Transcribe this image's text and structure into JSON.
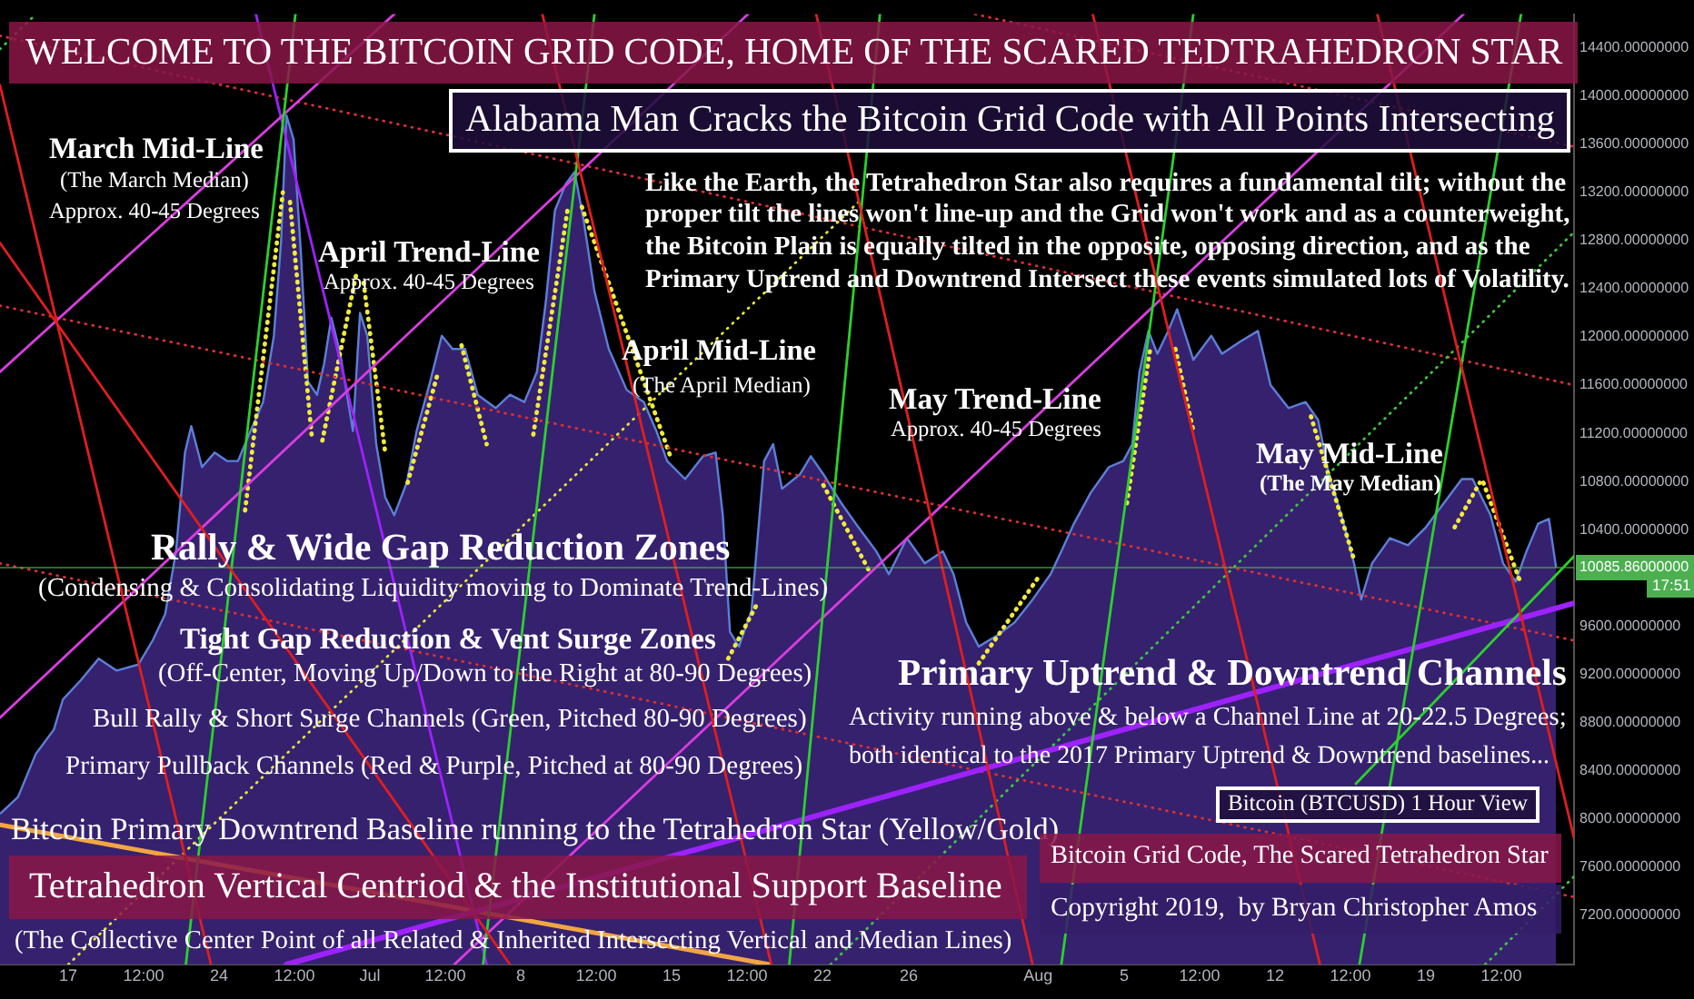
{
  "chart_data": {
    "type": "area",
    "title": "WELCOME TO THE BITCOIN GRID CODE, HOME OF THE SCARED TEDTRAHEDRON STAR",
    "subtitle": "Alabama Man Cracks the Bitcoin Grid Code with All Points Intersecting",
    "series": [
      {
        "type": "area",
        "color": "#3b2478",
        "x": [
          "2019-06-13T20:00",
          "2019-06-14T16:00",
          "2019-06-15T12:00",
          "2019-06-16T08:00",
          "2019-06-16T18:00",
          "2019-06-17T14:00",
          "2019-06-18T10:00",
          "2019-06-19T06:00",
          "2019-06-20T06:00",
          "2019-06-20T22:00",
          "2019-06-21T12:00",
          "2019-06-22T00:00",
          "2019-06-22T10:00",
          "2019-06-22T17:00",
          "2019-06-23T05:00",
          "2019-06-23T19:00",
          "2019-06-24T09:00",
          "2019-06-24T21:00",
          "2019-06-25T11:00",
          "2019-06-26T01:00",
          "2019-06-26T13:00",
          "2019-06-26T21:00",
          "2019-06-27T03:00",
          "2019-06-27T11:00",
          "2019-06-27T19:00",
          "2019-06-28T03:00",
          "2019-06-28T13:00",
          "2019-06-28T21:00",
          "2019-06-29T05:00",
          "2019-06-29T15:00",
          "2019-06-30T05:00",
          "2019-06-30T13:00",
          "2019-06-30T21:00",
          "2019-07-01T07:00",
          "2019-07-01T17:00",
          "2019-07-02T03:00",
          "2019-07-02T17:00",
          "2019-07-03T04:00",
          "2019-07-03T18:00",
          "2019-07-04T08:00",
          "2019-07-04T20:00",
          "2019-07-05T10:00",
          "2019-07-06T00:00",
          "2019-07-06T20:00",
          "2019-07-07T12:00",
          "2019-07-08T04:00",
          "2019-07-08T18:00",
          "2019-07-09T04:00",
          "2019-07-09T14:00",
          "2019-07-10T02:00",
          "2019-07-10T12:00",
          "2019-07-10T22:00",
          "2019-07-11T10:00",
          "2019-07-12T02:00",
          "2019-07-12T22:00",
          "2019-07-13T17:00",
          "2019-07-14T07:00",
          "2019-07-14T19:00",
          "2019-07-15T15:00",
          "2019-07-16T11:00",
          "2019-07-17T01:00",
          "2019-07-17T09:00",
          "2019-07-17T17:00",
          "2019-07-18T03:00",
          "2019-07-18T17:00",
          "2019-07-19T07:00",
          "2019-07-19T17:00",
          "2019-07-20T03:00",
          "2019-07-20T23:00",
          "2019-07-21T11:00",
          "2019-07-22T01:00",
          "2019-07-22T21:00",
          "2019-07-23T16:00",
          "2019-07-24T12:00",
          "2019-07-25T02:00",
          "2019-07-25T22:00",
          "2019-07-26T18:00",
          "2019-07-27T14:00",
          "2019-07-28T02:00",
          "2019-07-28T16:00",
          "2019-07-29T06:00",
          "2019-07-30T02:00",
          "2019-07-30T22:00",
          "2019-07-31T18:00",
          "2019-08-01T14:00",
          "2019-08-02T02:00",
          "2019-08-02T16:00",
          "2019-08-03T11:00",
          "2019-08-04T07:00",
          "2019-08-04T23:00",
          "2019-08-05T09:00",
          "2019-08-05T17:00",
          "2019-08-06T03:00",
          "2019-08-06T13:00",
          "2019-08-07T01:00",
          "2019-08-07T11:00",
          "2019-08-08T05:00",
          "2019-08-09T01:00",
          "2019-08-09T13:00",
          "2019-08-10T09:00",
          "2019-08-11T05:00",
          "2019-08-11T19:00",
          "2019-08-12T15:00",
          "2019-08-13T10:00",
          "2019-08-14T00:00",
          "2019-08-14T12:00",
          "2019-08-15T02:00",
          "2019-08-15T16:00",
          "2019-08-16T00:00",
          "2019-08-16T12:00",
          "2019-08-17T08:00",
          "2019-08-18T04:00",
          "2019-08-19T00:00",
          "2019-08-19T20:00",
          "2019-08-20T16:00",
          "2019-08-21T04:00",
          "2019-08-22T00:00",
          "2019-08-22T14:00",
          "2019-08-23T04:00",
          "2019-08-23T16:00",
          "2019-08-24T05:00",
          "2019-08-24T17:00",
          "2019-08-25T01:00"
        ],
        "values": [
          8040,
          8180,
          8540,
          8740,
          8990,
          9150,
          9330,
          9230,
          9280,
          9480,
          9700,
          10220,
          11040,
          11260,
          10920,
          11040,
          10970,
          10970,
          11220,
          11460,
          12010,
          12790,
          13840,
          13640,
          12710,
          11630,
          11520,
          11780,
          12160,
          11860,
          11220,
          12200,
          12010,
          11110,
          10670,
          10520,
          10790,
          11220,
          11600,
          12010,
          11900,
          11900,
          11520,
          11410,
          11520,
          11460,
          11710,
          12300,
          13050,
          13270,
          13370,
          12970,
          12380,
          11900,
          11560,
          11460,
          11220,
          10970,
          10820,
          11010,
          11040,
          10520,
          9550,
          9430,
          9730,
          10970,
          11110,
          10740,
          10860,
          11010,
          10860,
          10620,
          10420,
          10220,
          10030,
          10330,
          10120,
          10220,
          10030,
          9630,
          9430,
          9520,
          9630,
          9820,
          10030,
          10220,
          10450,
          10710,
          10920,
          10970,
          11110,
          11710,
          12050,
          11860,
          12050,
          12230,
          11810,
          12010,
          11860,
          11960,
          12050,
          11600,
          11410,
          11460,
          11310,
          10860,
          10520,
          10120,
          9820,
          10120,
          10330,
          10270,
          10420,
          10620,
          10820,
          10820,
          10520,
          10120,
          9970,
          10220,
          10450,
          10490,
          10085.86
        ]
      },
      {
        "type": "line",
        "color": "#e01e1e",
        "x": [
          "2019-06-13T20:00",
          "2019-06-23T15:00"
        ],
        "values": [
          14090,
          6790
        ]
      },
      {
        "type": "line",
        "color": "#e01e1e",
        "x": [
          "2019-06-13T20:00",
          "2019-07-07T12:00"
        ],
        "values": [
          12780,
          6790
        ]
      },
      {
        "type": "line",
        "color": "#e01e1e",
        "x": [
          "2019-07-09T00:00",
          "2019-07-19T15:00"
        ],
        "values": [
          14680,
          6790
        ]
      },
      {
        "type": "line",
        "color": "#e01e1e",
        "x": [
          "2019-07-21T17:00",
          "2019-07-31T18:00"
        ],
        "values": [
          14680,
          6790
        ]
      },
      {
        "type": "line",
        "color": "#e01e1e",
        "x": [
          "2019-08-03T13:00",
          "2019-08-14T02:00"
        ],
        "values": [
          14680,
          6790
        ]
      },
      {
        "type": "line",
        "color": "#e01e1e",
        "x": [
          "2019-08-16T18:00",
          "2019-08-25T21:00"
        ],
        "values": [
          14680,
          7840
        ]
      },
      {
        "type": "line",
        "color": "#2bd12b",
        "x": [
          "2019-06-22T11:00",
          "2019-06-27T13:00"
        ],
        "values": [
          6790,
          14680
        ]
      },
      {
        "type": "line",
        "color": "#2bd12b",
        "x": [
          "2019-07-06T06:00",
          "2019-07-11T10:00"
        ],
        "values": [
          6790,
          14680
        ]
      },
      {
        "type": "line",
        "color": "#2bd12b",
        "x": [
          "2019-07-20T11:00",
          "2019-07-24T16:00"
        ],
        "values": [
          6790,
          14680
        ]
      },
      {
        "type": "line",
        "color": "#2bd12b",
        "x": [
          "2019-08-02T02:00",
          "2019-08-08T05:00"
        ],
        "values": [
          6790,
          14680
        ]
      },
      {
        "type": "line",
        "color": "#2bd12b",
        "x": [
          "2019-08-15T22:00",
          "2019-08-23T10:00"
        ],
        "values": [
          6790,
          14680
        ]
      },
      {
        "type": "line",
        "color": "#2bd12b",
        "x": [
          "2019-08-15T18:00",
          "2019-08-25T21:00"
        ],
        "values": [
          8290,
          10180
        ]
      },
      {
        "type": "line",
        "color": "#d93de0",
        "x": [
          "2019-06-13T20:00",
          "2019-07-02T03:00"
        ],
        "values": [
          11710,
          14680
        ]
      },
      {
        "type": "line",
        "color": "#d93de0",
        "x": [
          "2019-06-13T20:00",
          "2019-07-18T13:00"
        ],
        "values": [
          8840,
          14680
        ]
      },
      {
        "type": "line",
        "color": "#d93de0",
        "x": [
          "2019-07-04T22:00",
          "2019-08-20T18:00"
        ],
        "values": [
          6790,
          14680
        ]
      },
      {
        "type": "line",
        "color": "#9d22ff",
        "x": [
          "2019-06-25T17:00",
          "2019-07-06T10:00"
        ],
        "values": [
          14680,
          6790
        ]
      },
      {
        "type": "line",
        "color": "#9d22ff",
        "x": [
          "2019-06-27T03:00",
          "2019-08-25T21:00"
        ],
        "values": [
          6790,
          9790
        ]
      },
      {
        "type": "line",
        "color": "#f2a541",
        "x": [
          "2019-06-13T20:00",
          "2019-07-19T13:00"
        ],
        "values": [
          7950,
          6790
        ]
      },
      {
        "type": "line",
        "color": "#e8e83a",
        "line_style": "dotted",
        "x": [
          "2019-06-17T00:00",
          "2019-07-23T16:00"
        ],
        "values": [
          6790,
          13120
        ]
      },
      {
        "type": "line",
        "color": "#3cc83c",
        "line_style": "dotted",
        "x": [
          "2019-07-22T09:00",
          "2019-08-25T21:00"
        ],
        "values": [
          6790,
          12870
        ]
      },
      {
        "type": "line",
        "color": "#3cc83c",
        "line_style": "dotted",
        "x": [
          "2019-06-13T20:00",
          "2019-06-15T12:00"
        ],
        "values": [
          14390,
          14680
        ]
      },
      {
        "type": "line",
        "color": "#3cc83c",
        "line_style": "dotted",
        "x": [
          "2019-08-21T18:00",
          "2019-08-25T21:00"
        ],
        "values": [
          6790,
          7520
        ]
      },
      {
        "type": "line",
        "color": "#d83030",
        "line_style": "dotted",
        "x": [
          "2019-06-13T20:00",
          "2019-08-25T21:00"
        ],
        "values": [
          12260,
          9480
        ]
      },
      {
        "type": "line",
        "color": "#d83030",
        "line_style": "dotted",
        "x": [
          "2019-06-13T20:00",
          "2019-08-25T21:00"
        ],
        "values": [
          14500,
          11600
        ]
      },
      {
        "type": "line",
        "color": "#d83030",
        "line_style": "dotted",
        "x": [
          "2019-06-13T20:00",
          "2019-08-25T21:00"
        ],
        "values": [
          10120,
          7350
        ]
      },
      {
        "type": "line",
        "color": "#d83030",
        "line_style": "dotted",
        "x": [
          "2019-07-29T02:00",
          "2019-08-25T21:00"
        ],
        "values": [
          14680,
          13580
        ]
      },
      {
        "type": "line",
        "color": "#f0ea3c",
        "line_style": "dotted",
        "x": [
          "2019-06-25T05:00",
          "2019-06-26T23:00"
        ],
        "values": [
          10560,
          13200
        ]
      },
      {
        "type": "line",
        "color": "#f0ea3c",
        "line_style": "dotted",
        "x": [
          "2019-06-27T07:00",
          "2019-06-28T07:00"
        ],
        "values": [
          13120,
          11190
        ]
      },
      {
        "type": "line",
        "color": "#f0ea3c",
        "line_style": "dotted",
        "x": [
          "2019-06-28T19:00",
          "2019-06-30T09:00"
        ],
        "values": [
          11140,
          12530
        ]
      },
      {
        "type": "line",
        "color": "#f0ea3c",
        "line_style": "dotted",
        "x": [
          "2019-06-30T17:00",
          "2019-07-01T17:00"
        ],
        "values": [
          12450,
          11040
        ]
      },
      {
        "type": "line",
        "color": "#f0ea3c",
        "line_style": "dotted",
        "x": [
          "2019-07-02T18:00",
          "2019-07-04T04:00"
        ],
        "values": [
          10790,
          11710
        ]
      },
      {
        "type": "line",
        "color": "#f0ea3c",
        "line_style": "dotted",
        "x": [
          "2019-07-05T06:00",
          "2019-07-06T10:00"
        ],
        "values": [
          11930,
          11110
        ]
      },
      {
        "type": "line",
        "color": "#f0ea3c",
        "line_style": "dotted",
        "x": [
          "2019-07-08T14:00",
          "2019-07-10T04:00"
        ],
        "values": [
          11190,
          13050
        ]
      },
      {
        "type": "line",
        "color": "#f0ea3c",
        "line_style": "dotted",
        "x": [
          "2019-07-10T20:00",
          "2019-07-14T23:00"
        ],
        "values": [
          13080,
          11000
        ]
      },
      {
        "type": "line",
        "color": "#f0ea3c",
        "line_style": "dotted",
        "x": [
          "2019-07-17T15:00",
          "2019-07-18T23:00"
        ],
        "values": [
          9330,
          9780
        ]
      },
      {
        "type": "line",
        "color": "#f0ea3c",
        "line_style": "dotted",
        "x": [
          "2019-07-22T01:00",
          "2019-07-24T06:00"
        ],
        "values": [
          10770,
          10030
        ]
      },
      {
        "type": "line",
        "color": "#f0ea3c",
        "line_style": "dotted",
        "x": [
          "2019-07-29T06:00",
          "2019-08-01T00:00"
        ],
        "values": [
          9290,
          10000
        ]
      },
      {
        "type": "line",
        "color": "#f0ea3c",
        "line_style": "dotted",
        "x": [
          "2019-08-05T03:00",
          "2019-08-06T05:00"
        ],
        "values": [
          10620,
          11900
        ]
      },
      {
        "type": "line",
        "color": "#f0ea3c",
        "line_style": "dotted",
        "x": [
          "2019-08-07T09:00",
          "2019-08-08T05:00"
        ],
        "values": [
          11900,
          11220
        ]
      },
      {
        "type": "line",
        "color": "#f0ea3c",
        "line_style": "dotted",
        "x": [
          "2019-08-13T16:00",
          "2019-08-15T16:00"
        ],
        "values": [
          11340,
          10150
        ]
      },
      {
        "type": "line",
        "color": "#f0ea3c",
        "line_style": "dotted",
        "x": [
          "2019-08-20T08:00",
          "2019-08-21T12:00"
        ],
        "values": [
          10420,
          10790
        ]
      },
      {
        "type": "line",
        "color": "#f0ea3c",
        "line_style": "dotted",
        "x": [
          "2019-08-21T16:00",
          "2019-08-23T10:00"
        ],
        "values": [
          10790,
          9950
        ]
      }
    ],
    "xlim": [
      "2019-06-13T20:00",
      "2019-08-25T21:00"
    ],
    "xticks": [
      {
        "value": "2019-06-17",
        "label": "17"
      },
      {
        "value": "2019-06-20T12:00",
        "label": "12:00"
      },
      {
        "value": "2019-06-24",
        "label": "24"
      },
      {
        "value": "2019-06-27T12:00",
        "label": "12:00"
      },
      {
        "value": "2019-07-01",
        "label": "Jul"
      },
      {
        "value": "2019-07-04T12:00",
        "label": "12:00"
      },
      {
        "value": "2019-07-08",
        "label": "8"
      },
      {
        "value": "2019-07-11T12:00",
        "label": "12:00"
      },
      {
        "value": "2019-07-15",
        "label": "15"
      },
      {
        "value": "2019-07-18T12:00",
        "label": "12:00"
      },
      {
        "value": "2019-07-22",
        "label": "22"
      },
      {
        "value": "2019-07-26",
        "label": "26"
      },
      {
        "value": "2019-08-01",
        "label": "Aug"
      },
      {
        "value": "2019-08-05",
        "label": "5"
      },
      {
        "value": "2019-08-08T12:00",
        "label": "12:00"
      },
      {
        "value": "2019-08-12",
        "label": "12"
      },
      {
        "value": "2019-08-15T12:00",
        "label": "12:00"
      },
      {
        "value": "2019-08-19",
        "label": "19"
      },
      {
        "value": "2019-08-22T12:00",
        "label": "12:00"
      }
    ],
    "ylim": [
      6790,
      14680
    ],
    "yticks": [
      {
        "value": 7200,
        "label": "7200.00000000"
      },
      {
        "value": 7600,
        "label": "7600.00000000"
      },
      {
        "value": 8000,
        "label": "8000.00000000"
      },
      {
        "value": 8400,
        "label": "8400.00000000"
      },
      {
        "value": 8800,
        "label": "8800.00000000"
      },
      {
        "value": 9200,
        "label": "9200.00000000"
      },
      {
        "value": 9600,
        "label": "9600.00000000"
      },
      {
        "value": 10400,
        "label": "10400.00000000"
      },
      {
        "value": 10800,
        "label": "10800.00000000"
      },
      {
        "value": 11200,
        "label": "11200.00000000"
      },
      {
        "value": 11600,
        "label": "11600.00000000"
      },
      {
        "value": 12000,
        "label": "12000.00000000"
      },
      {
        "value": 12400,
        "label": "12400.00000000"
      },
      {
        "value": 12800,
        "label": "12800.00000000"
      },
      {
        "value": 13200,
        "label": "13200.00000000"
      },
      {
        "value": 13600,
        "label": "13600.00000000"
      },
      {
        "value": 14000,
        "label": "14000.00000000"
      },
      {
        "value": 14400,
        "label": "14400.00000000"
      }
    ],
    "ref_lines": [
      {
        "axis": "y",
        "value": 10085.86,
        "label": "10085.86000000",
        "color": "#4caf50"
      }
    ],
    "annotations": [
      "Like the Earth, the Tetrahedron Star also requires a fundamental tilt; without the",
      "proper tilt the lines won't line-up and the Grid won't work and as a counterweight,",
      "the Bitcoin Plain is equally tilted in the opposite, opposing direction, and as the",
      "Primary Uptrend and Downtrend Intersect these events simulated lots of Volatility.",
      "March Mid-Line",
      "(The March Median)",
      "Approx. 40-45 Degrees",
      "April Trend-Line",
      "Approx. 40-45 Degrees",
      "April Mid-Line",
      "(The April Median)",
      "May Trend-Line",
      "Approx. 40-45 Degrees",
      "May Mid-Line",
      "(The May Median)",
      "Rally & Wide Gap Reduction Zones",
      "(Condensing & Consolidating Liquidity moving to Dominate Trend-Lines)",
      "Tight Gap Reduction & Vent Surge Zones",
      "(Off-Center, Moving Up/Down to the Right at 80-90 Degrees)",
      "Bull Rally & Short Surge Channels (Green, Pitched 80-90 Degrees)",
      "Primary Pullback Channels (Red & Purple, Pitched at 80-90 Degrees)",
      "Bitcoin Primary Downtrend Baseline running to the Tetrahedron Star (Yellow/Gold)",
      "Tetrahedron Vertical Centriod & the Institutional Support Baseline",
      "(The Collective Center Point of all Related & Inherited Intersecting Vertical and Median Lines)",
      "Primary Uptrend & Downtrend Channels",
      "Activity running above & below a Channel Line at 20-22.5 Degrees;",
      "both identical to the 2017 Primary Uptrend & Downtrend baselines...",
      "Bitcoin (BTCUSD) 1 Hour View",
      "Bitcoin Grid Code, The Scared Tetrahedron Star",
      "Copyright 2019,  by Bryan Christopher Amos",
      "17:51"
    ],
    "grid": false,
    "legend": false
  }
}
